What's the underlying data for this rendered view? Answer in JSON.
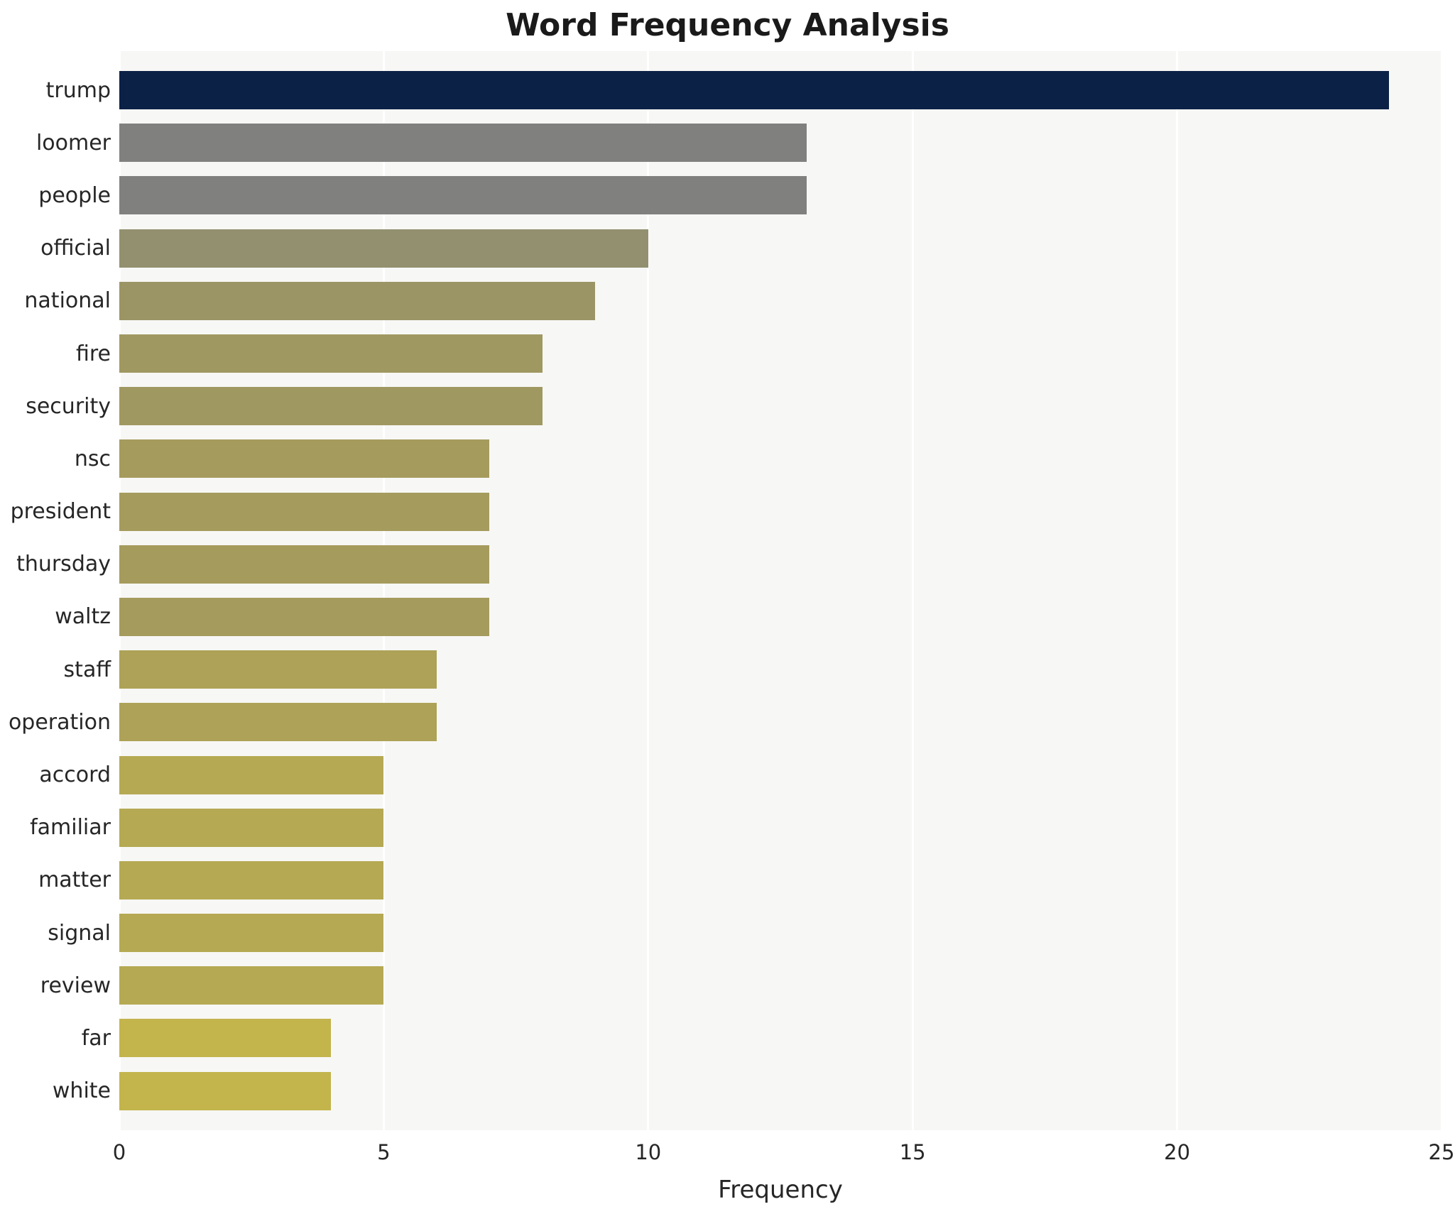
{
  "chart_data": {
    "type": "bar",
    "orientation": "horizontal",
    "title": "Word Frequency Analysis",
    "xlabel": "Frequency",
    "ylabel": "",
    "xlim": [
      0,
      25
    ],
    "xticks": [
      0,
      5,
      10,
      15,
      20,
      25
    ],
    "grid": true,
    "plot_background": "#f7f7f5",
    "categories": [
      "trump",
      "loomer",
      "people",
      "official",
      "national",
      "fire",
      "security",
      "nsc",
      "president",
      "thursday",
      "waltz",
      "staff",
      "operation",
      "accord",
      "familiar",
      "matter",
      "signal",
      "review",
      "far",
      "white"
    ],
    "values": [
      24,
      13,
      13,
      10,
      9,
      8,
      8,
      7,
      7,
      7,
      7,
      6,
      6,
      5,
      5,
      5,
      5,
      5,
      4,
      4
    ],
    "bar_colors": [
      "#0b2145",
      "#80817f",
      "#80817f",
      "#92906f",
      "#9b9465",
      "#a09861",
      "#a09861",
      "#a59b5d",
      "#a59b5d",
      "#a59b5d",
      "#a59b5d",
      "#ada257",
      "#ada257",
      "#b5a953",
      "#b5a953",
      "#b5a953",
      "#b5a953",
      "#b5a953",
      "#c3b44c",
      "#c3b44c"
    ]
  }
}
